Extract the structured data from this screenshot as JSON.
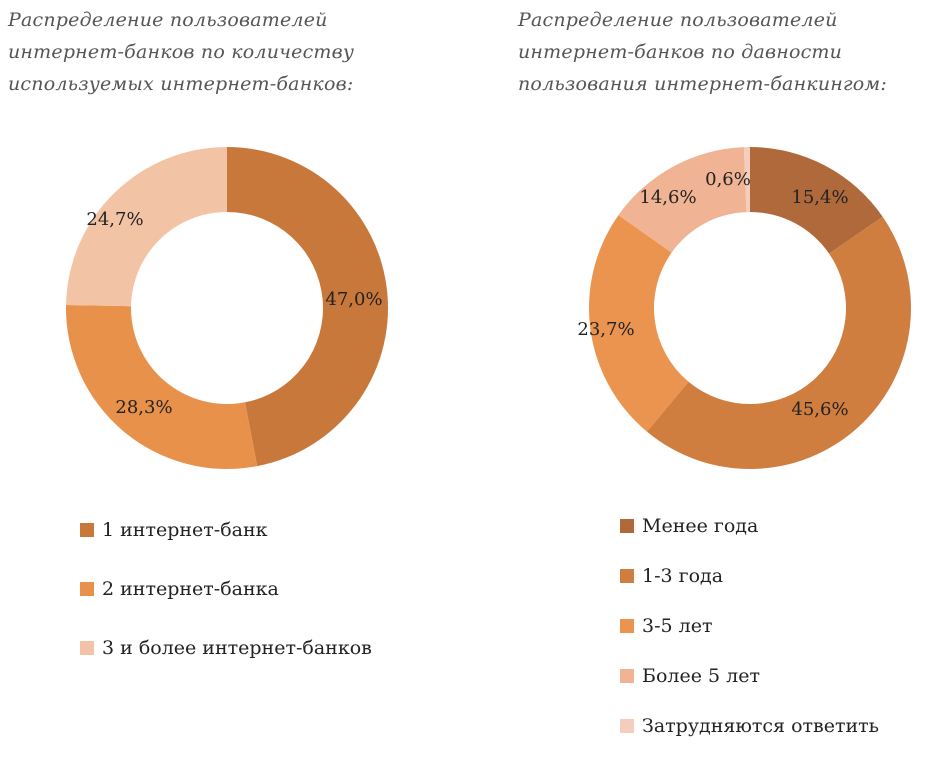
{
  "chart_data": [
    {
      "type": "donut",
      "title": "Распределение пользователей\nинтернет-банков по количеству\nиспользуемых интернет-банков:",
      "categories": [
        "1 интернет-банк",
        "2 интернет-банка",
        "3 и более интернет-банков"
      ],
      "values": [
        47.0,
        28.3,
        24.7
      ],
      "value_labels": [
        "47,0%",
        "28,3%",
        "24,7%"
      ],
      "colors": [
        "#c8783a",
        "#e8914a",
        "#f2c3a4"
      ],
      "start": "top, clockwise",
      "legend_position": "bottom"
    },
    {
      "type": "donut",
      "title": "Распределение пользователей\nинтернет-банков по давности\nпользования интернет-банкингом:",
      "categories": [
        "Менее года",
        "1-3 года",
        "3-5 лет",
        "Более 5 лет",
        "Затрудняются ответить"
      ],
      "values": [
        15.4,
        45.6,
        23.7,
        14.6,
        0.6
      ],
      "value_labels": [
        "15,4%",
        "45,6%",
        "23,7%",
        "14,6%",
        "0,6%"
      ],
      "colors": [
        "#b0693a",
        "#cf7e40",
        "#eb9450",
        "#f0b394",
        "#f5cdbd"
      ],
      "start": "top, clockwise",
      "legend_position": "bottom"
    }
  ]
}
